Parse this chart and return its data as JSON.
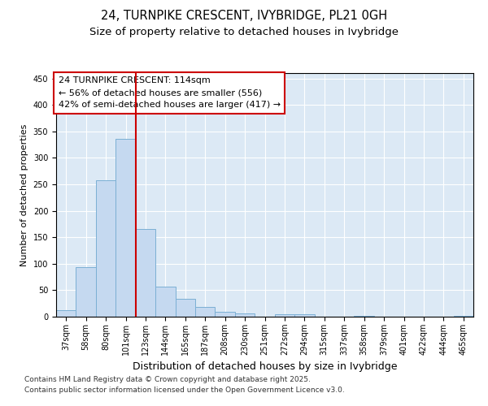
{
  "title": "24, TURNPIKE CRESCENT, IVYBRIDGE, PL21 0GH",
  "subtitle": "Size of property relative to detached houses in Ivybridge",
  "xlabel": "Distribution of detached houses by size in Ivybridge",
  "ylabel": "Number of detached properties",
  "categories": [
    "37sqm",
    "58sqm",
    "80sqm",
    "101sqm",
    "123sqm",
    "144sqm",
    "165sqm",
    "187sqm",
    "208sqm",
    "230sqm",
    "251sqm",
    "272sqm",
    "294sqm",
    "315sqm",
    "337sqm",
    "358sqm",
    "379sqm",
    "401sqm",
    "422sqm",
    "444sqm",
    "465sqm"
  ],
  "values": [
    12,
    93,
    257,
    336,
    165,
    57,
    33,
    18,
    9,
    6,
    0,
    4,
    5,
    0,
    0,
    2,
    0,
    0,
    0,
    0,
    2
  ],
  "bar_color": "#c5d9f0",
  "bar_edge_color": "#7bafd4",
  "vline_color": "#cc0000",
  "vline_pos": 3.5,
  "annotation_box_text": "24 TURNPIKE CRESCENT: 114sqm\n← 56% of detached houses are smaller (556)\n42% of semi-detached houses are larger (417) →",
  "annotation_box_facecolor": "white",
  "annotation_box_edgecolor": "#cc0000",
  "ylim": [
    0,
    460
  ],
  "yticks": [
    0,
    50,
    100,
    150,
    200,
    250,
    300,
    350,
    400,
    450
  ],
  "bg_color": "#dce9f5",
  "fig_bg_color": "#ffffff",
  "footer_line1": "Contains HM Land Registry data © Crown copyright and database right 2025.",
  "footer_line2": "Contains public sector information licensed under the Open Government Licence v3.0.",
  "title_fontsize": 10.5,
  "subtitle_fontsize": 9.5,
  "xlabel_fontsize": 9,
  "ylabel_fontsize": 8,
  "tick_fontsize": 7,
  "annotation_fontsize": 8,
  "footer_fontsize": 6.5
}
